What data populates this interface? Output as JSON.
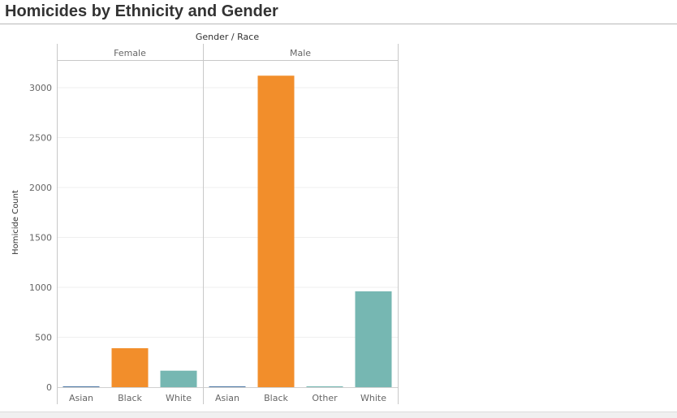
{
  "page": {
    "title": "Homicides by Ethnicity and Gender"
  },
  "chart_data": {
    "type": "bar",
    "title": "Homicides by Ethnicity and Gender",
    "column_header": "Gender / Race",
    "ylabel": "Homicide Count",
    "ylim": [
      -60,
      3350
    ],
    "yticks": [
      0,
      500,
      1000,
      1500,
      2000,
      2500,
      3000
    ],
    "grid": true,
    "panels": [
      {
        "name": "Female",
        "categories": [
          "Asian",
          "Black",
          "White"
        ],
        "values": [
          8,
          390,
          165
        ],
        "colors": [
          "#4e79a7",
          "#f28e2b",
          "#76b7b2"
        ]
      },
      {
        "name": "Male",
        "categories": [
          "Asian",
          "Black",
          "Other",
          "White"
        ],
        "values": [
          8,
          3120,
          1,
          960
        ],
        "colors": [
          "#4e79a7",
          "#f28e2b",
          "#76b7b2",
          "#76b7b2"
        ]
      }
    ]
  }
}
